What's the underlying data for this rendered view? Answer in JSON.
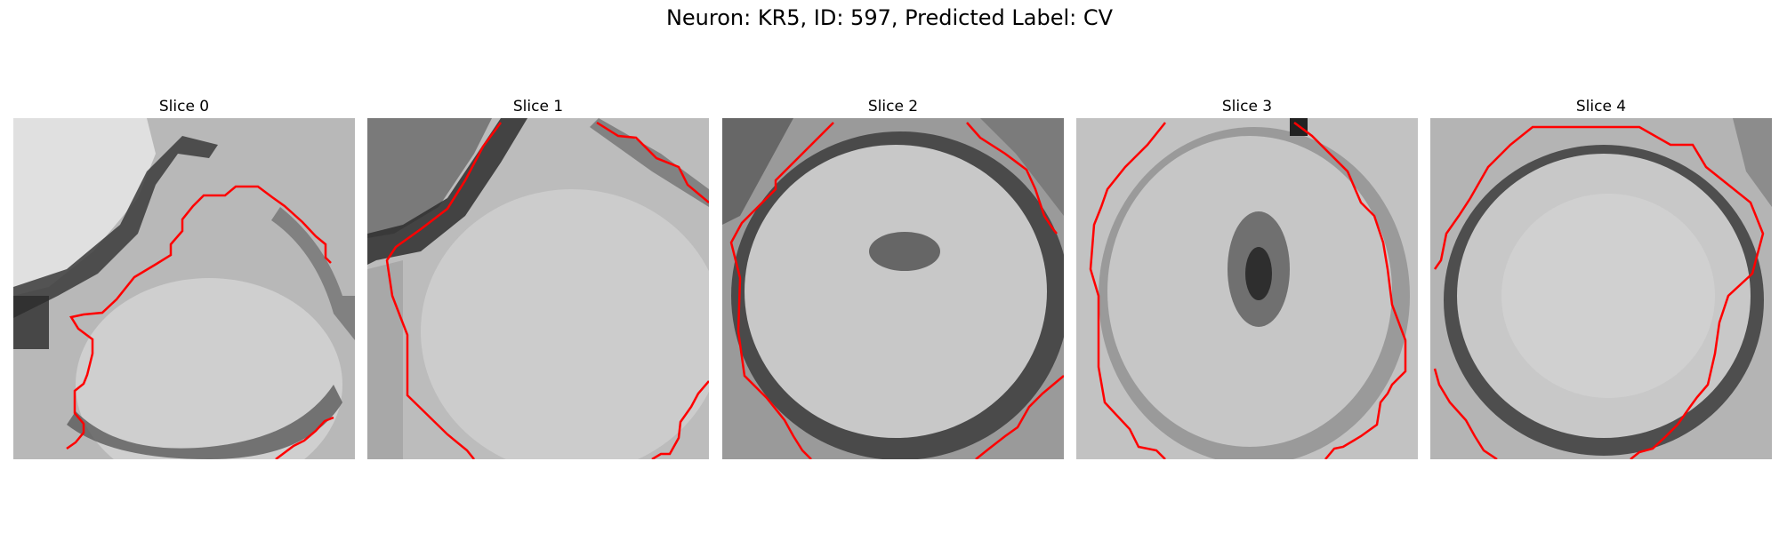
{
  "figure": {
    "title": "Neuron: KR5, ID: 597, Predicted Label: CV",
    "panels": [
      {
        "title": "Slice 0"
      },
      {
        "title": "Slice 1"
      },
      {
        "title": "Slice 2"
      },
      {
        "title": "Slice 3"
      },
      {
        "title": "Slice 4"
      }
    ],
    "contour_color": "#ff0000",
    "colormap": "grayscale"
  }
}
